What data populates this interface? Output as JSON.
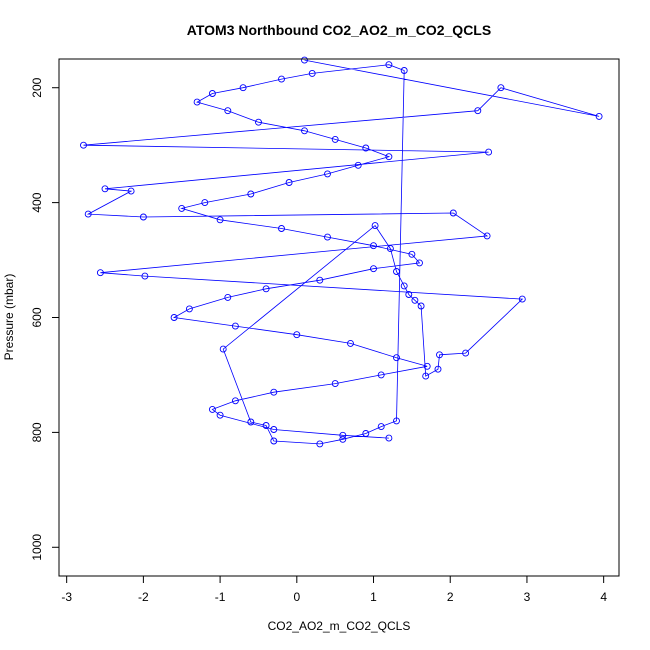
{
  "chart_data": {
    "type": "scatter",
    "title": "ATOM3 Northbound CO2_AO2_m_CO2_QCLS",
    "xlabel": "CO2_AO2_m_CO2_QCLS",
    "ylabel": "Pressure (mbar)",
    "xlim": [
      -3.1,
      4.2
    ],
    "ylim": [
      1050,
      150
    ],
    "y_reversed": true,
    "x_ticks": [
      -3,
      -2,
      -1,
      0,
      1,
      2,
      3,
      4
    ],
    "y_ticks": [
      200,
      400,
      600,
      800,
      1000
    ],
    "grid": false,
    "legend": "none",
    "marker": "open-circle",
    "connected": true,
    "color": "#0000ff",
    "series": [
      {
        "x": [
          0.1,
          3.94,
          2.66,
          2.36,
          -2.78,
          2.5,
          -2.5,
          -2.16,
          -2.72,
          -2.0,
          2.04,
          2.48,
          -2.56,
          -1.98,
          2.94,
          2.2,
          1.86,
          1.84,
          1.68,
          1.62,
          1.54,
          1.46,
          1.4,
          1.3,
          1.22,
          1.02,
          -0.96,
          -0.6,
          -0.4,
          -0.3,
          0.3,
          0.6,
          0.9,
          1.1,
          1.3,
          1.4,
          1.2,
          0.2,
          -0.2,
          -0.7,
          -1.1,
          -1.3,
          -0.9,
          -0.5,
          0.1,
          0.5,
          0.9,
          1.2,
          0.8,
          0.4,
          -0.1,
          -0.6,
          -1.2,
          -1.5,
          -1.0,
          -0.2,
          0.4,
          1.0,
          1.5,
          1.6,
          1.0,
          0.3,
          -0.4,
          -0.9,
          -1.4,
          -1.6,
          -0.8,
          0.0,
          0.7,
          1.3,
          1.7,
          1.1,
          0.5,
          -0.3,
          -0.8,
          -1.1,
          -1.0,
          -0.3,
          0.6,
          1.2
        ],
        "y": [
          152,
          250,
          200,
          240,
          300,
          312,
          376,
          380,
          420,
          425,
          418,
          458,
          522,
          528,
          568,
          662,
          665,
          690,
          702,
          580,
          570,
          560,
          545,
          520,
          480,
          440,
          655,
          782,
          788,
          815,
          820,
          812,
          802,
          790,
          780,
          170,
          160,
          175,
          185,
          200,
          210,
          225,
          240,
          260,
          275,
          290,
          305,
          320,
          335,
          350,
          365,
          385,
          400,
          410,
          430,
          445,
          460,
          475,
          490,
          505,
          515,
          535,
          550,
          565,
          585,
          600,
          615,
          630,
          645,
          670,
          685,
          700,
          715,
          730,
          745,
          760,
          770,
          795,
          805,
          810
        ]
      }
    ]
  }
}
